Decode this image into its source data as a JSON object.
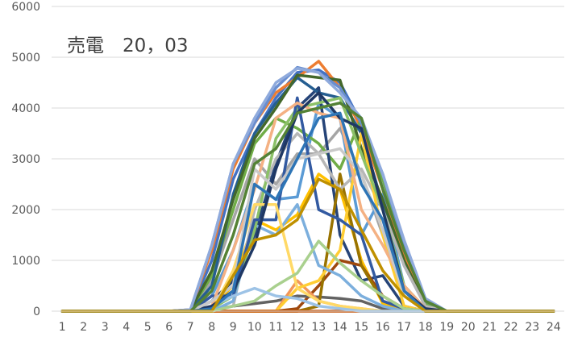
{
  "chart_data": {
    "type": "line",
    "title": "売電　20，03",
    "xlabel": "",
    "ylabel": "",
    "categories": [
      "1",
      "2",
      "3",
      "4",
      "5",
      "6",
      "7",
      "8",
      "9",
      "10",
      "11",
      "12",
      "13",
      "14",
      "15",
      "16",
      "17",
      "18",
      "19",
      "20",
      "21",
      "22",
      "23",
      "24"
    ],
    "ylim": [
      0,
      6000
    ],
    "yticks": [
      0,
      1000,
      2000,
      3000,
      4000,
      5000,
      6000
    ],
    "grid": true,
    "legend": "none",
    "colors": [
      "#4472C4",
      "#ED7D31",
      "#A5A5A5",
      "#FFC000",
      "#5B9BD5",
      "#70AD47",
      "#264478",
      "#9E480E",
      "#636363",
      "#997300",
      "#255E91",
      "#43682B",
      "#698ED0",
      "#F1975A",
      "#B7B7B7",
      "#FFCD33",
      "#7CAFDD",
      "#8CC168",
      "#335AA1",
      "#C65911",
      "#FFD966",
      "#A9D08E",
      "#9DC3E6",
      "#F4B183",
      "#1F3864",
      "#8FAADC",
      "#C9C9C9",
      "#548235",
      "#2E75B6",
      "#BF9000"
    ],
    "series": [
      {
        "values": [
          0,
          0,
          0,
          0,
          0,
          0,
          20,
          1000,
          2600,
          3500,
          4200,
          4700,
          4750,
          4500,
          3700,
          2600,
          1200,
          150,
          0,
          0,
          0,
          0,
          0,
          0
        ]
      },
      {
        "values": [
          0,
          0,
          0,
          0,
          0,
          0,
          30,
          1200,
          2800,
          3700,
          4300,
          4600,
          4920,
          4400,
          3600,
          2400,
          1100,
          120,
          0,
          0,
          0,
          0,
          0,
          0
        ]
      },
      {
        "values": [
          0,
          0,
          0,
          0,
          0,
          0,
          10,
          600,
          1800,
          3000,
          2500,
          3100,
          3100,
          3600,
          2700,
          1500,
          500,
          50,
          0,
          0,
          0,
          0,
          0,
          0
        ]
      },
      {
        "values": [
          0,
          0,
          0,
          0,
          0,
          0,
          0,
          100,
          500,
          1800,
          1600,
          1900,
          2700,
          2400,
          1000,
          150,
          0,
          0,
          0,
          0,
          0,
          0,
          0,
          0
        ]
      },
      {
        "values": [
          0,
          0,
          0,
          0,
          0,
          0,
          0,
          300,
          1200,
          2500,
          2200,
          2250,
          4100,
          3800,
          1500,
          2300,
          500,
          50,
          0,
          0,
          0,
          0,
          0,
          0
        ]
      },
      {
        "values": [
          0,
          0,
          0,
          0,
          0,
          0,
          20,
          700,
          2000,
          3300,
          3800,
          3600,
          3300,
          2800,
          3800,
          2600,
          1300,
          150,
          0,
          0,
          0,
          0,
          0,
          0
        ]
      },
      {
        "values": [
          0,
          0,
          0,
          0,
          0,
          0,
          0,
          200,
          600,
          1500,
          2900,
          4000,
          4400,
          1500,
          600,
          700,
          100,
          0,
          0,
          0,
          0,
          0,
          0,
          0
        ]
      },
      {
        "values": [
          0,
          0,
          0,
          0,
          0,
          0,
          0,
          0,
          0,
          0,
          0,
          50,
          500,
          1000,
          900,
          300,
          50,
          0,
          0,
          0,
          0,
          0,
          0,
          0
        ]
      },
      {
        "values": [
          0,
          0,
          0,
          0,
          0,
          0,
          0,
          20,
          100,
          150,
          200,
          300,
          280,
          250,
          200,
          50,
          0,
          0,
          0,
          0,
          0,
          0,
          0,
          0
        ]
      },
      {
        "values": [
          0,
          0,
          0,
          0,
          0,
          0,
          0,
          0,
          0,
          0,
          0,
          0,
          100,
          2700,
          900,
          200,
          50,
          0,
          0,
          0,
          0,
          0,
          0,
          0
        ]
      },
      {
        "values": [
          0,
          0,
          0,
          0,
          0,
          0,
          10,
          500,
          2300,
          3500,
          4100,
          4600,
          4300,
          4200,
          3500,
          2100,
          900,
          100,
          0,
          0,
          0,
          0,
          0,
          0
        ]
      },
      {
        "values": [
          0,
          0,
          0,
          0,
          0,
          0,
          20,
          800,
          2200,
          3400,
          4000,
          4650,
          4600,
          4550,
          3200,
          2200,
          1000,
          100,
          0,
          0,
          0,
          0,
          0,
          0
        ]
      },
      {
        "values": [
          0,
          0,
          0,
          0,
          0,
          0,
          30,
          1300,
          2900,
          3700,
          4400,
          4800,
          4700,
          4400,
          3700,
          2700,
          1300,
          200,
          0,
          0,
          0,
          0,
          0,
          0
        ]
      },
      {
        "values": [
          0,
          0,
          0,
          0,
          0,
          0,
          0,
          0,
          0,
          0,
          0,
          600,
          200,
          100,
          50,
          0,
          0,
          0,
          0,
          0,
          0,
          0,
          0,
          0
        ]
      },
      {
        "values": [
          0,
          0,
          0,
          0,
          0,
          0,
          0,
          0,
          100,
          2000,
          3000,
          3500,
          3100,
          2400,
          2800,
          2000,
          900,
          100,
          0,
          0,
          0,
          0,
          0,
          0
        ]
      },
      {
        "values": [
          0,
          0,
          0,
          0,
          0,
          0,
          0,
          0,
          0,
          0,
          0,
          450,
          600,
          1200,
          3500,
          1500,
          100,
          0,
          0,
          0,
          0,
          0,
          0,
          0
        ]
      },
      {
        "values": [
          0,
          0,
          0,
          0,
          0,
          0,
          0,
          0,
          200,
          1700,
          1500,
          2100,
          900,
          700,
          300,
          100,
          0,
          0,
          0,
          0,
          0,
          0,
          0,
          0
        ]
      },
      {
        "values": [
          0,
          0,
          0,
          0,
          0,
          0,
          0,
          50,
          300,
          1600,
          3400,
          4000,
          4100,
          4200,
          3100,
          2000,
          500,
          50,
          0,
          0,
          0,
          0,
          0,
          0
        ]
      },
      {
        "values": [
          0,
          0,
          0,
          0,
          0,
          0,
          0,
          300,
          300,
          1800,
          1800,
          4200,
          2000,
          1800,
          1500,
          200,
          50,
          0,
          0,
          0,
          0,
          0,
          0,
          0
        ]
      },
      {
        "values": [
          0,
          0,
          0,
          0,
          0,
          0,
          0,
          0,
          0,
          0,
          0,
          0,
          0,
          0,
          0,
          0,
          0,
          0,
          0,
          0,
          0,
          0,
          0,
          0
        ]
      },
      {
        "values": [
          0,
          0,
          0,
          0,
          0,
          0,
          0,
          0,
          800,
          2100,
          2100,
          450,
          200,
          100,
          50,
          0,
          0,
          0,
          0,
          0,
          0,
          0,
          0,
          0
        ]
      },
      {
        "values": [
          0,
          0,
          0,
          0,
          0,
          0,
          0,
          0,
          100,
          200,
          500,
          750,
          1380,
          950,
          600,
          300,
          50,
          0,
          0,
          0,
          0,
          0,
          0,
          0
        ]
      },
      {
        "values": [
          0,
          0,
          0,
          0,
          0,
          0,
          0,
          100,
          300,
          450,
          300,
          250,
          100,
          50,
          0,
          0,
          0,
          0,
          0,
          0,
          0,
          0,
          0,
          0
        ]
      },
      {
        "values": [
          0,
          0,
          0,
          0,
          0,
          0,
          0,
          100,
          1200,
          2400,
          3800,
          4100,
          3900,
          3800,
          2000,
          1300,
          500,
          50,
          0,
          0,
          0,
          0,
          0,
          0
        ]
      },
      {
        "values": [
          0,
          0,
          0,
          0,
          0,
          0,
          0,
          100,
          400,
          1300,
          2800,
          3900,
          4300,
          3800,
          3600,
          2000,
          400,
          50,
          0,
          0,
          0,
          0,
          0,
          0
        ]
      },
      {
        "values": [
          0,
          0,
          0,
          0,
          0,
          0,
          30,
          1300,
          2900,
          3800,
          4500,
          4780,
          4700,
          4300,
          3800,
          2700,
          1400,
          250,
          0,
          0,
          0,
          0,
          0,
          0
        ]
      },
      {
        "values": [
          0,
          0,
          0,
          0,
          0,
          0,
          0,
          200,
          500,
          2800,
          2400,
          3000,
          3100,
          3200,
          2700,
          1600,
          300,
          0,
          0,
          0,
          0,
          0,
          0,
          0
        ]
      },
      {
        "values": [
          0,
          0,
          0,
          0,
          0,
          0,
          0,
          400,
          1500,
          2900,
          3200,
          3900,
          4000,
          4100,
          3800,
          2400,
          1200,
          200,
          0,
          0,
          0,
          0,
          0,
          0
        ]
      },
      {
        "values": [
          0,
          0,
          0,
          0,
          0,
          0,
          0,
          50,
          400,
          2500,
          2200,
          3000,
          3800,
          3900,
          2500,
          1800,
          400,
          0,
          0,
          0,
          0,
          0,
          0,
          0
        ]
      },
      {
        "values": [
          0,
          0,
          0,
          0,
          0,
          0,
          0,
          0,
          700,
          1400,
          1500,
          1800,
          2600,
          2400,
          1600,
          800,
          300,
          0,
          0,
          0,
          0,
          0,
          0,
          0
        ]
      }
    ]
  }
}
